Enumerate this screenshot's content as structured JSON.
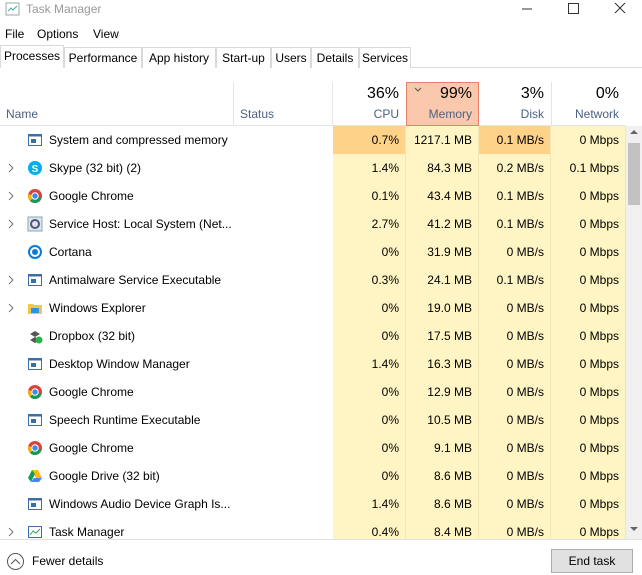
{
  "window": {
    "title": "Task Manager"
  },
  "menu": [
    "File",
    "Options",
    "View"
  ],
  "tabs": [
    "Processes",
    "Performance",
    "App history",
    "Start-up",
    "Users",
    "Details",
    "Services"
  ],
  "columns": {
    "name": "Name",
    "status": "Status",
    "cpu": {
      "total": "36%",
      "label": "CPU"
    },
    "memory": {
      "total": "99%",
      "label": "Memory"
    },
    "disk": {
      "total": "3%",
      "label": "Disk"
    },
    "network": {
      "total": "0%",
      "label": "Network"
    }
  },
  "rows": [
    [
      "System and compressed memory",
      "0.7%",
      "1217.1 MB",
      "0.1 MB/s",
      "0 Mbps"
    ],
    [
      "Skype (32 bit) (2)",
      "1.4%",
      "84.3 MB",
      "0.2 MB/s",
      "0.1 Mbps"
    ],
    [
      "Google Chrome",
      "0.1%",
      "43.4 MB",
      "0.1 MB/s",
      "0 Mbps"
    ],
    [
      "Service Host: Local System (Net...",
      "2.7%",
      "41.2 MB",
      "0.1 MB/s",
      "0 Mbps"
    ],
    [
      "Cortana",
      "0%",
      "31.9 MB",
      "0 MB/s",
      "0 Mbps"
    ],
    [
      "Antimalware Service Executable",
      "0.3%",
      "24.1 MB",
      "0.1 MB/s",
      "0 Mbps"
    ],
    [
      "Windows Explorer",
      "0%",
      "19.0 MB",
      "0 MB/s",
      "0 Mbps"
    ],
    [
      "Dropbox (32 bit)",
      "0%",
      "17.5 MB",
      "0 MB/s",
      "0 Mbps"
    ],
    [
      "Desktop Window Manager",
      "1.4%",
      "16.3 MB",
      "0 MB/s",
      "0 Mbps"
    ],
    [
      "Google Chrome",
      "0%",
      "12.9 MB",
      "0 MB/s",
      "0 Mbps"
    ],
    [
      "Speech Runtime Executable",
      "0%",
      "10.5 MB",
      "0 MB/s",
      "0 Mbps"
    ],
    [
      "Google Chrome",
      "0%",
      "9.1 MB",
      "0 MB/s",
      "0 Mbps"
    ],
    [
      "Google Drive (32 bit)",
      "0%",
      "8.6 MB",
      "0 MB/s",
      "0 Mbps"
    ],
    [
      "Windows Audio Device Graph Is...",
      "1.4%",
      "8.6 MB",
      "0 MB/s",
      "0 Mbps"
    ],
    [
      "Task Manager",
      "0.4%",
      "8.4 MB",
      "0 MB/s",
      "0 Mbps"
    ]
  ],
  "footer": {
    "toggle": "Fewer details",
    "button": "End task"
  }
}
